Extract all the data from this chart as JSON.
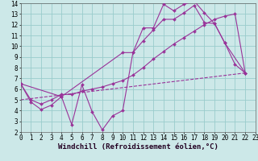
{
  "background_color": "#cce8e8",
  "grid_color": "#99cccc",
  "line_color": "#993399",
  "xlim": [
    0,
    23
  ],
  "ylim": [
    2,
    14
  ],
  "xticks": [
    0,
    1,
    2,
    3,
    4,
    5,
    6,
    7,
    8,
    9,
    10,
    11,
    12,
    13,
    14,
    15,
    16,
    17,
    18,
    19,
    20,
    21,
    22,
    23
  ],
  "yticks": [
    2,
    3,
    4,
    5,
    6,
    7,
    8,
    9,
    10,
    11,
    12,
    13,
    14
  ],
  "line1_x": [
    0,
    1,
    2,
    3,
    4,
    5,
    6,
    7,
    8,
    9,
    10,
    11,
    12,
    13,
    14,
    15,
    16,
    17,
    18,
    19,
    20,
    21,
    22
  ],
  "line1_y": [
    6.5,
    4.8,
    4.1,
    4.5,
    5.3,
    2.7,
    6.4,
    3.9,
    2.2,
    3.5,
    4.0,
    9.4,
    11.7,
    11.7,
    13.9,
    13.3,
    13.9,
    14.2,
    13.1,
    12.1,
    10.3,
    8.3,
    7.5
  ],
  "line2_x": [
    0,
    4,
    10,
    11,
    12,
    13,
    14,
    15,
    16,
    17,
    18,
    19,
    20,
    22
  ],
  "line2_y": [
    6.5,
    5.3,
    9.4,
    9.4,
    10.5,
    11.5,
    12.5,
    12.5,
    13.1,
    13.8,
    12.2,
    12.1,
    10.3,
    7.5
  ],
  "line3_x": [
    0,
    1,
    2,
    3,
    4,
    5,
    6,
    7,
    8,
    9,
    10,
    11,
    12,
    13,
    14,
    15,
    16,
    17,
    18,
    19,
    20,
    21,
    22
  ],
  "line3_y": [
    6.5,
    5.0,
    4.6,
    5.0,
    5.5,
    5.5,
    5.8,
    6.0,
    6.2,
    6.5,
    6.8,
    7.3,
    8.0,
    8.8,
    9.5,
    10.2,
    10.8,
    11.4,
    12.0,
    12.5,
    12.8,
    13.0,
    7.5
  ],
  "line4_x": [
    0,
    22
  ],
  "line4_y": [
    5.0,
    7.5
  ],
  "xlabel": "Windchill (Refroidissement éolien,°C)",
  "tick_fontsize": 5.5,
  "xlabel_fontsize": 6.5
}
